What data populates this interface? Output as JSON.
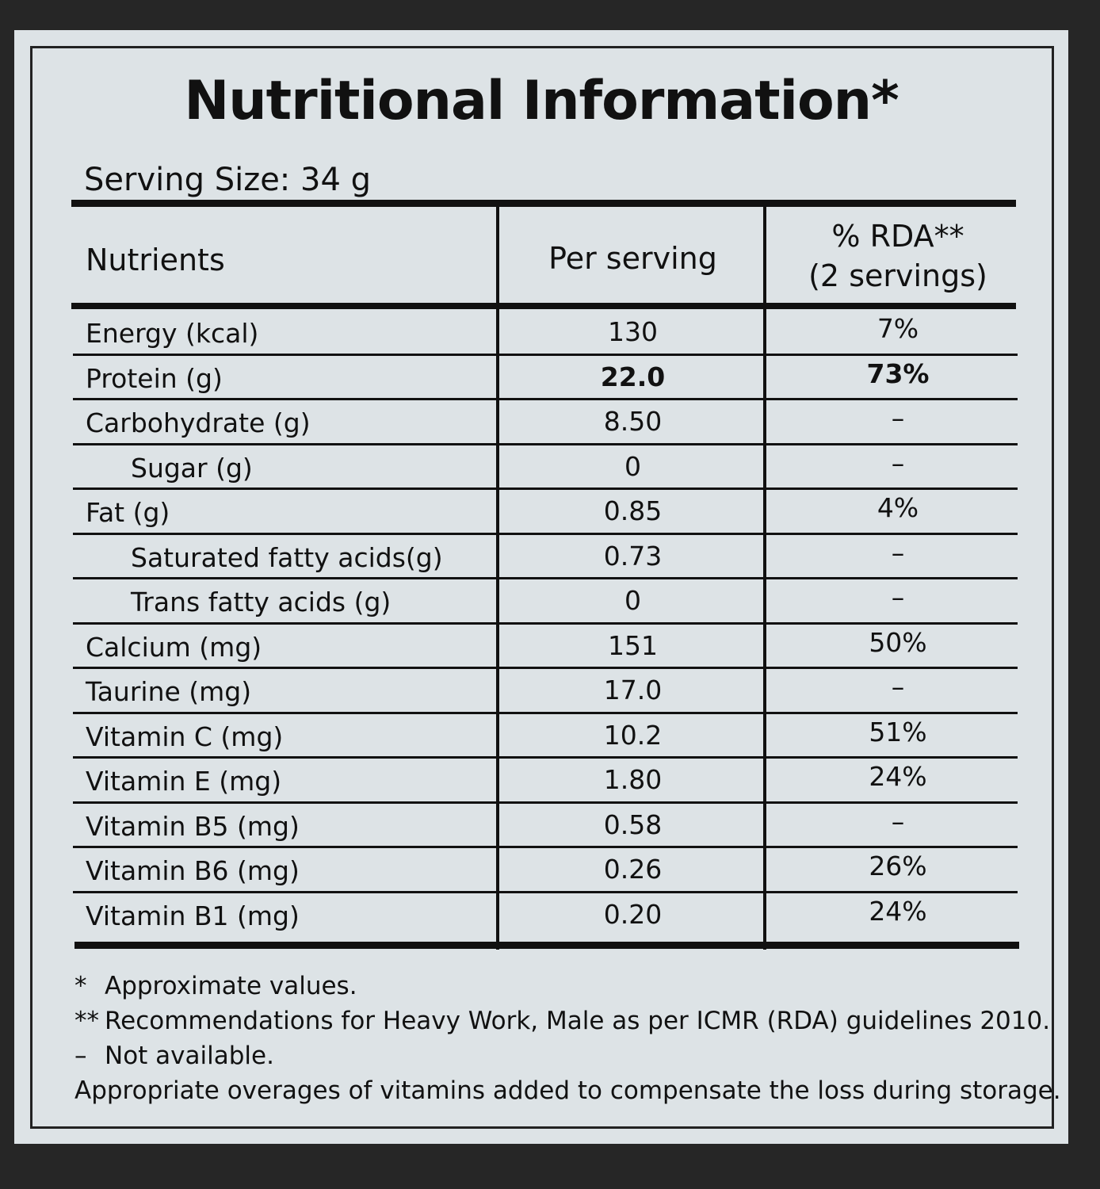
{
  "title": "Nutritional Information*",
  "serving_size": "Serving Size: 34 g",
  "table": {
    "header": [
      "Nutrients",
      "Per serving",
      "% RDA**",
      "(2 servings)"
    ],
    "rows": [
      [
        "Energy (kcal)",
        "130",
        "7%"
      ],
      [
        "Protein (g)",
        "22.0",
        "73%"
      ],
      [
        "Carbohydrate (g)",
        "8.50",
        "–"
      ],
      [
        "Sugar (g)",
        "0",
        "–"
      ],
      [
        "Fat (g)",
        "0.85",
        "4%"
      ],
      [
        "Saturated fatty acids(g)",
        "0.73",
        "–"
      ],
      [
        "Trans fatty acids (g)",
        "0",
        "–"
      ],
      [
        "Calcium (mg)",
        "151",
        "50%"
      ],
      [
        "Taurine (mg)",
        "17.0",
        "–"
      ],
      [
        "Vitamin C (mg)",
        "10.2",
        "51%"
      ],
      [
        "Vitamin E (mg)",
        "1.80",
        "24%"
      ],
      [
        "Vitamin B5 (mg)",
        "0.58",
        "–"
      ],
      [
        "Vitamin B6 (mg)",
        "0.26",
        "26%"
      ],
      [
        "Vitamin B1 (mg)",
        "0.20",
        "24%"
      ]
    ]
  },
  "footnotes": [
    {
      "mark": "*",
      "text": "Approximate values."
    },
    {
      "mark": "**",
      "text": "Recommendations for Heavy Work, Male as per ICMR (RDA) guidelines 2010."
    },
    {
      "mark": "–",
      "text": "Not available."
    }
  ],
  "note": "Appropriate overages of vitamins added to compensate the loss during storage."
}
